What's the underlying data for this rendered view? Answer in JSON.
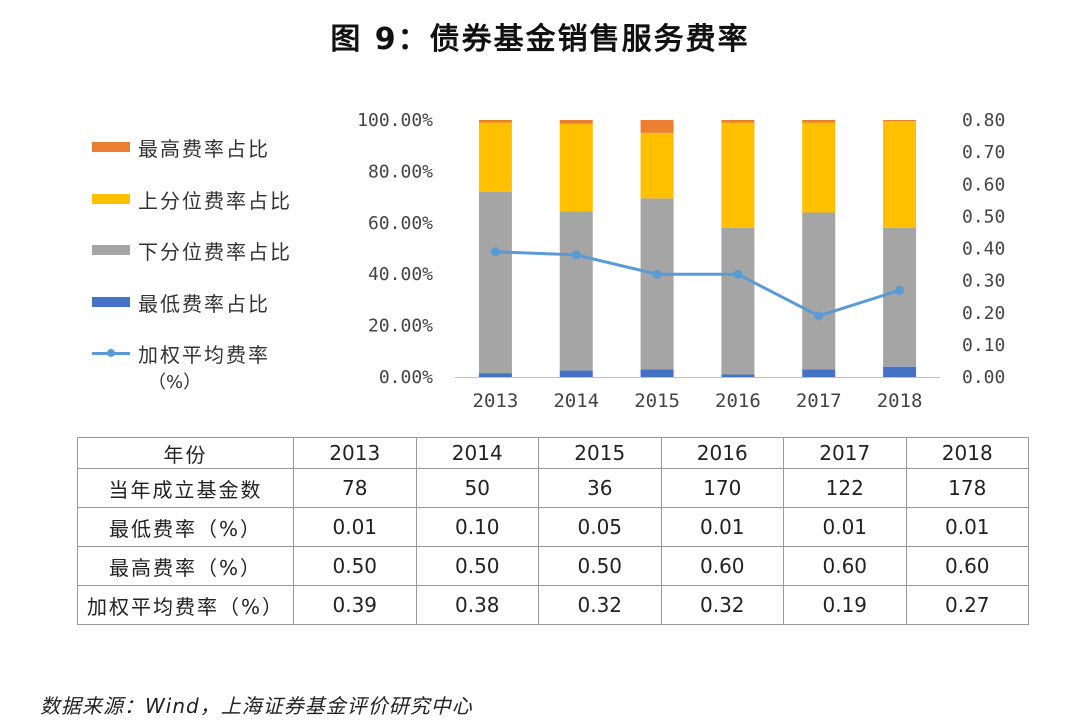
{
  "title": "图 9：债券基金销售服务费率",
  "legend": [
    {
      "label": "最高费率占比",
      "color": "#ed7d31",
      "type": "bar"
    },
    {
      "label": "上分位费率占比",
      "color": "#ffc000",
      "type": "bar"
    },
    {
      "label": "下分位费率占比",
      "color": "#a5a5a5",
      "type": "bar"
    },
    {
      "label": "最低费率占比",
      "color": "#4472c4",
      "type": "bar"
    },
    {
      "label": "加权平均费率",
      "color": "#5b9bd5",
      "type": "line"
    }
  ],
  "legend_unit": "（%）",
  "chart_data": {
    "type": "bar",
    "stacked": true,
    "categories": [
      "2013",
      "2014",
      "2015",
      "2016",
      "2017",
      "2018"
    ],
    "y_left_ticks": [
      "0.00%",
      "20.00%",
      "40.00%",
      "60.00%",
      "80.00%",
      "100.00%"
    ],
    "y_left_range": [
      0,
      100
    ],
    "y_right_ticks": [
      "0.00",
      "0.10",
      "0.20",
      "0.30",
      "0.40",
      "0.50",
      "0.60",
      "0.70",
      "0.80"
    ],
    "y_right_range": [
      0,
      0.8
    ],
    "series": [
      {
        "name": "最低费率占比",
        "color": "#4472c4",
        "values": [
          1.5,
          2.5,
          3,
          1,
          3,
          4
        ]
      },
      {
        "name": "下分位费率占比",
        "color": "#a5a5a5",
        "values": [
          70.5,
          62,
          66.5,
          57,
          61,
          54
        ]
      },
      {
        "name": "上分位费率占比",
        "color": "#ffc000",
        "values": [
          27,
          34,
          25.5,
          41,
          35,
          41.5
        ]
      },
      {
        "name": "最高费率占比",
        "color": "#ed7d31",
        "values": [
          1,
          1.5,
          5,
          1,
          1,
          0.5
        ]
      }
    ],
    "line": {
      "name": "加权平均费率",
      "color": "#5b9bd5",
      "values": [
        0.39,
        0.38,
        0.32,
        0.32,
        0.19,
        0.27
      ]
    }
  },
  "table": {
    "header": [
      "年份",
      "2013",
      "2014",
      "2015",
      "2016",
      "2017",
      "2018"
    ],
    "rows": [
      [
        "当年成立基金数",
        "78",
        "50",
        "36",
        "170",
        "122",
        "178"
      ],
      [
        "最低费率（%）",
        "0.01",
        "0.10",
        "0.05",
        "0.01",
        "0.01",
        "0.01"
      ],
      [
        "最高费率（%）",
        "0.50",
        "0.50",
        "0.50",
        "0.60",
        "0.60",
        "0.60"
      ],
      [
        "加权平均费率（%）",
        "0.39",
        "0.38",
        "0.32",
        "0.32",
        "0.19",
        "0.27"
      ]
    ]
  },
  "source": "数据来源：Wind，上海证券基金评价研究中心"
}
